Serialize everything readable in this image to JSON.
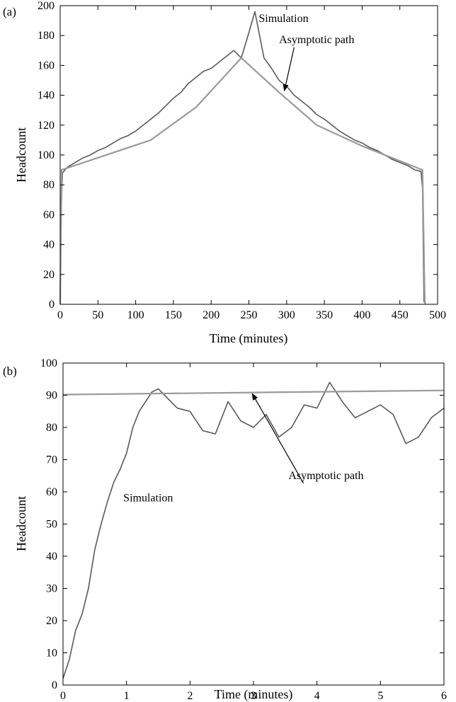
{
  "chart_data": [
    {
      "panel_label": "(a)",
      "type": "line",
      "xlabel": "Time (minutes)",
      "ylabel": "Headcount",
      "xlim": [
        0,
        500
      ],
      "ylim": [
        0,
        200
      ],
      "xticks": [
        0,
        50,
        100,
        150,
        200,
        250,
        300,
        350,
        400,
        450,
        500
      ],
      "yticks": [
        0,
        20,
        40,
        60,
        80,
        100,
        120,
        140,
        160,
        180,
        200
      ],
      "grid": false,
      "series": [
        {
          "name": "Simulation",
          "color": "#5a5a5a",
          "x": [
            0,
            1,
            3,
            10,
            20,
            30,
            40,
            50,
            60,
            70,
            80,
            90,
            100,
            110,
            120,
            130,
            140,
            150,
            160,
            170,
            180,
            190,
            200,
            210,
            220,
            230,
            240,
            250,
            258,
            270,
            280,
            290,
            300,
            310,
            320,
            330,
            340,
            350,
            360,
            370,
            380,
            390,
            400,
            410,
            420,
            430,
            440,
            450,
            460,
            470,
            478,
            480,
            482,
            484
          ],
          "y": [
            0,
            60,
            88,
            92,
            95,
            98,
            100,
            103,
            105,
            108,
            111,
            113,
            116,
            120,
            124,
            128,
            133,
            138,
            142,
            148,
            152,
            156,
            158,
            162,
            166,
            170,
            165,
            182,
            196,
            165,
            158,
            150,
            146,
            140,
            136,
            132,
            127,
            124,
            120,
            116,
            113,
            110,
            108,
            105,
            103,
            100,
            97,
            95,
            93,
            90,
            89,
            78,
            2,
            0
          ]
        },
        {
          "name": "Asymptotic path",
          "color": "#9a9a9a",
          "x": [
            0,
            2,
            120,
            180,
            240,
            290,
            340,
            400,
            480,
            483,
            484
          ],
          "y": [
            0,
            90,
            110,
            132,
            165,
            142,
            120,
            106,
            90,
            2,
            0
          ]
        }
      ],
      "annotations": [
        {
          "text": "Simulation",
          "x": 263,
          "y": 189
        },
        {
          "text": "Asymptotic path",
          "x": 290,
          "y": 175,
          "arrow_to": [
            297,
            143
          ]
        }
      ]
    },
    {
      "panel_label": "(b)",
      "type": "line",
      "xlabel": "Time (minutes)",
      "ylabel": "Headcount",
      "xlim": [
        0,
        6
      ],
      "ylim": [
        0,
        100
      ],
      "xticks": [
        0,
        1,
        2,
        3,
        4,
        5,
        6
      ],
      "yticks": [
        0,
        10,
        20,
        30,
        40,
        50,
        60,
        70,
        80,
        90,
        100
      ],
      "grid": false,
      "series": [
        {
          "name": "Simulation",
          "color": "#5a5a5a",
          "x": [
            0,
            0.1,
            0.2,
            0.3,
            0.4,
            0.5,
            0.6,
            0.7,
            0.8,
            0.9,
            1.0,
            1.1,
            1.2,
            1.3,
            1.4,
            1.5,
            1.6,
            1.7,
            1.8,
            2.0,
            2.2,
            2.4,
            2.6,
            2.8,
            3.0,
            3.2,
            3.4,
            3.6,
            3.8,
            4.0,
            4.2,
            4.4,
            4.6,
            4.8,
            5.0,
            5.2,
            5.4,
            5.6,
            5.8,
            6.0
          ],
          "y": [
            2,
            8,
            17,
            22,
            30,
            42,
            50,
            57,
            63,
            67,
            72,
            80,
            85,
            88,
            91,
            92,
            90,
            88,
            86,
            85,
            79,
            78,
            88,
            82,
            80,
            84,
            77,
            80,
            87,
            86,
            94,
            88,
            83,
            85,
            87,
            84,
            75,
            77,
            83,
            86
          ]
        },
        {
          "name": "Asymptotic path",
          "color": "#9a9a9a",
          "x": [
            0,
            6
          ],
          "y": [
            90.2,
            91.5
          ]
        }
      ],
      "annotations": [
        {
          "text": "Simulation",
          "x": 0.95,
          "y": 57
        },
        {
          "text": "Asymptotic path",
          "x": 3.55,
          "y": 64,
          "arrow_to": [
            2.98,
            90.5
          ]
        }
      ]
    }
  ]
}
